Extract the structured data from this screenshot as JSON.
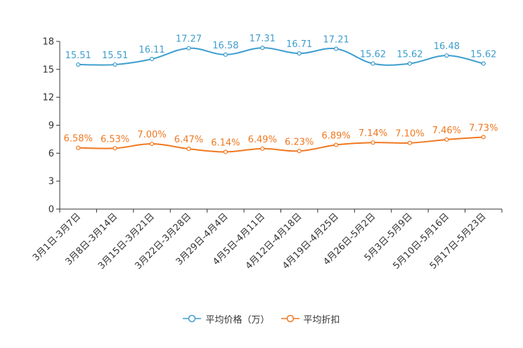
{
  "chart_data": {
    "type": "line",
    "title": "",
    "xlabel": "",
    "ylabel": "",
    "ylim": [
      0,
      18
    ],
    "yticks": [
      "0",
      "3",
      "6",
      "9",
      "12",
      "15",
      "18"
    ],
    "categories": [
      "3月1日-3月7日",
      "3月8日-3月14日",
      "3月15日-3月21日",
      "3月22日-3月28日",
      "3月29日-4月4日",
      "4月5日-4月11日",
      "4月12日-4月18日",
      "4月19日-4月25日",
      "4月26日-5月2日",
      "5月3日-5月9日",
      "5月10日-5月16日",
      "5月17日-5月23日"
    ],
    "series": [
      {
        "name": "平均价格（万）",
        "color": "#3e9ece",
        "values": [
          15.51,
          15.51,
          16.11,
          17.27,
          16.58,
          17.31,
          16.71,
          17.21,
          15.62,
          15.62,
          16.48,
          15.62
        ],
        "labels": [
          "15.51",
          "15.51",
          "16.11",
          "17.27",
          "16.58",
          "17.31",
          "16.71",
          "17.21",
          "15.62",
          "15.62",
          "16.48",
          "15.62"
        ]
      },
      {
        "name": "平均折扣",
        "color": "#f07820",
        "values": [
          6.58,
          6.53,
          7.0,
          6.47,
          6.14,
          6.49,
          6.23,
          6.89,
          7.14,
          7.1,
          7.46,
          7.73
        ],
        "labels": [
          "6.58%",
          "6.53%",
          "7.00%",
          "6.47%",
          "6.14%",
          "6.49%",
          "6.23%",
          "6.89%",
          "7.14%",
          "7.10%",
          "7.46%",
          "7.73%"
        ]
      }
    ],
    "legend_position": "bottom-center"
  }
}
